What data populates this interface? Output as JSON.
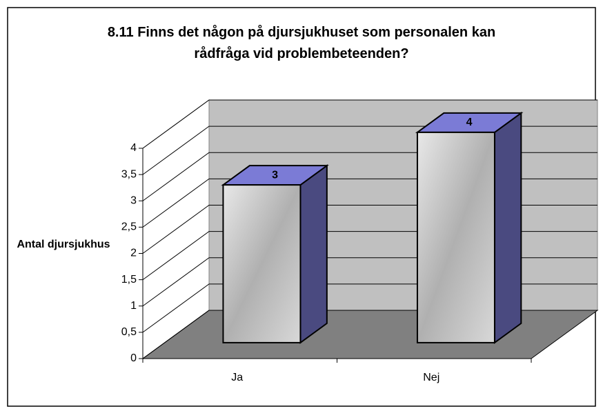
{
  "chart_data": {
    "type": "bar3d",
    "title": "8.11 Finns det någon på djursjukhuset som personalen kan rådfråga vid problembeteenden?",
    "y_label": "Antal djursjukhus",
    "categories": [
      "Ja",
      "Nej"
    ],
    "values": [
      3,
      4
    ],
    "color": "#7b7bd6",
    "ylim": [
      0,
      4
    ],
    "yticks": [
      0,
      {
        "value": 0.5,
        "label": "0,5"
      },
      1,
      {
        "value": 1.5,
        "label": "1,5"
      },
      2,
      {
        "value": 2.5,
        "label": "2,5"
      },
      3,
      {
        "value": 3.5,
        "label": "3,5"
      },
      4
    ],
    "grid": true
  }
}
